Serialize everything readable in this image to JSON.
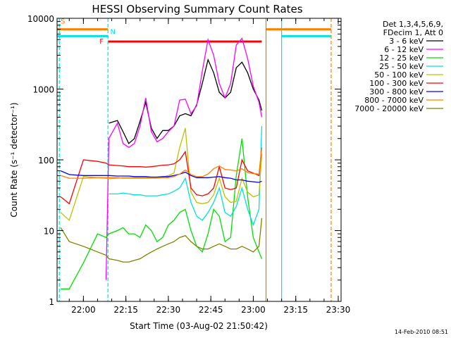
{
  "chart_data": {
    "type": "line",
    "title": "HESSI Observing Summary Count Rates",
    "xlabel": "Start Time (03-Aug-02 21:50:42)",
    "ylabel": "Count Rate (s⁻¹ detector⁻¹)",
    "yscale": "log",
    "ylim": [
      1,
      10000
    ],
    "xlim": [
      "21:50:42",
      "23:31:00"
    ],
    "x_ticks": [
      "22:00",
      "22:15",
      "22:30",
      "22:45",
      "23:00",
      "23:15",
      "23:30"
    ],
    "y_ticks": [
      "1",
      "10",
      "100",
      "1000",
      "10000"
    ],
    "footer_date": "14-Feb-2010 08:51",
    "legend": {
      "position": "right",
      "header_lines": [
        "Det 1,3,4,5,6,9,",
        "FDecim 1, Att 0"
      ]
    },
    "flags": [
      {
        "label": "S",
        "color": "#ff8000",
        "level": 7000,
        "segments": [
          [
            "21:50:42",
            "22:08:40"
          ],
          [
            "23:04:30",
            "23:27:30"
          ]
        ]
      },
      {
        "label": "N",
        "color": "#00e0e0",
        "level": 5600,
        "segments": [
          [
            "21:50:42",
            "22:08:40"
          ],
          [
            "23:10:00",
            "23:27:30"
          ]
        ]
      },
      {
        "label": "F",
        "color": "#ff0000",
        "level": 4700,
        "segments": [
          [
            "22:08:40",
            "23:03:00"
          ]
        ]
      }
    ],
    "vertical_markers": [
      {
        "time": "21:51:30",
        "color": "#00e0e0",
        "dashed": true
      },
      {
        "time": "22:08:40",
        "color": "#00e0e0",
        "dashed": true
      },
      {
        "time": "23:04:30",
        "color": "#d08000",
        "dashed": false
      },
      {
        "time": "23:10:00",
        "color": "#00e0e0",
        "dashed": false
      },
      {
        "time": "23:27:30",
        "color": "#ff8000",
        "dashed": true
      }
    ],
    "x": [
      "21:52",
      "21:55",
      "22:00",
      "22:05",
      "22:08",
      "22:09",
      "22:12",
      "22:14",
      "22:16",
      "22:18",
      "22:20",
      "22:22",
      "22:24",
      "22:26",
      "22:28",
      "22:30",
      "22:32",
      "22:34",
      "22:36",
      "22:38",
      "22:40",
      "22:42",
      "22:44",
      "22:46",
      "22:48",
      "22:50",
      "22:52",
      "22:54",
      "22:56",
      "22:58",
      "23:00",
      "23:02",
      "23:03"
    ],
    "series": [
      {
        "name": "3 - 6 keV",
        "color": "#000000",
        "values": [
          null,
          null,
          null,
          null,
          null,
          330,
          360,
          250,
          170,
          200,
          350,
          650,
          280,
          200,
          260,
          260,
          300,
          420,
          450,
          420,
          600,
          1200,
          2600,
          1700,
          900,
          750,
          900,
          2000,
          2400,
          1700,
          1000,
          700,
          500
        ]
      },
      {
        "name": "6 - 12 keV",
        "color": "#ff00ff",
        "values": [
          null,
          null,
          null,
          null,
          2,
          200,
          330,
          170,
          150,
          170,
          300,
          750,
          250,
          180,
          200,
          250,
          300,
          700,
          720,
          450,
          580,
          1800,
          5000,
          3000,
          1200,
          750,
          1200,
          4200,
          5200,
          2700,
          1100,
          650,
          400
        ]
      },
      {
        "name": "12 - 25 keV",
        "color": "#00e000",
        "values": [
          1.5,
          1.5,
          3.5,
          9,
          8,
          9,
          10,
          11,
          9,
          9,
          8,
          12,
          10,
          7,
          8,
          12,
          14,
          18,
          20,
          10,
          6,
          5,
          9,
          20,
          16,
          7,
          8,
          60,
          200,
          30,
          8,
          5,
          4
        ]
      },
      {
        "name": "25 - 50 keV",
        "color": "#00e0e0",
        "values": [
          null,
          null,
          null,
          null,
          null,
          33,
          33,
          34,
          33,
          32,
          32,
          31,
          31,
          31,
          32,
          33,
          36,
          40,
          55,
          25,
          16,
          14,
          18,
          25,
          40,
          18,
          16,
          22,
          40,
          20,
          12,
          20,
          300
        ]
      },
      {
        "name": "50 - 100 keV",
        "color": "#c0c000",
        "values": [
          18,
          14,
          58,
          56,
          55,
          54,
          55,
          56,
          56,
          56,
          56,
          56,
          57,
          57,
          57,
          60,
          65,
          150,
          280,
          35,
          25,
          24,
          25,
          32,
          55,
          30,
          25,
          26,
          55,
          35,
          30,
          32,
          120
        ]
      },
      {
        "name": "100 - 300 keV",
        "color": "#ff0000",
        "values": [
          30,
          24,
          100,
          95,
          90,
          85,
          83,
          82,
          80,
          80,
          80,
          79,
          80,
          82,
          84,
          85,
          88,
          100,
          130,
          40,
          32,
          31,
          33,
          40,
          80,
          40,
          38,
          40,
          100,
          70,
          65,
          60,
          150
        ]
      },
      {
        "name": "300 - 800 keV",
        "color": "#0000ff",
        "values": [
          70,
          62,
          60,
          60,
          60,
          60,
          59,
          59,
          59,
          58,
          58,
          58,
          57,
          57,
          58,
          58,
          60,
          63,
          67,
          60,
          56,
          56,
          56,
          57,
          58,
          56,
          55,
          52,
          52,
          50,
          49,
          48,
          50
        ]
      },
      {
        "name": "800 - 7000 keV",
        "color": "#ff8000",
        "values": [
          60,
          55,
          55,
          56,
          56,
          56,
          56,
          55,
          55,
          55,
          55,
          55,
          55,
          55,
          56,
          56,
          58,
          63,
          72,
          62,
          58,
          58,
          63,
          75,
          82,
          73,
          72,
          70,
          75,
          66,
          64,
          63,
          150
        ]
      },
      {
        "name": "7000 - 20000 keV",
        "color": "#808000",
        "values": [
          11,
          7,
          6,
          5,
          4.5,
          4,
          3.8,
          3.6,
          3.6,
          3.8,
          4,
          4.5,
          5,
          5.5,
          6,
          6.5,
          7,
          8,
          8.5,
          7,
          6,
          5.5,
          5.5,
          6,
          6.5,
          6,
          5.5,
          5.5,
          6,
          5.5,
          5,
          6,
          15
        ]
      }
    ]
  }
}
